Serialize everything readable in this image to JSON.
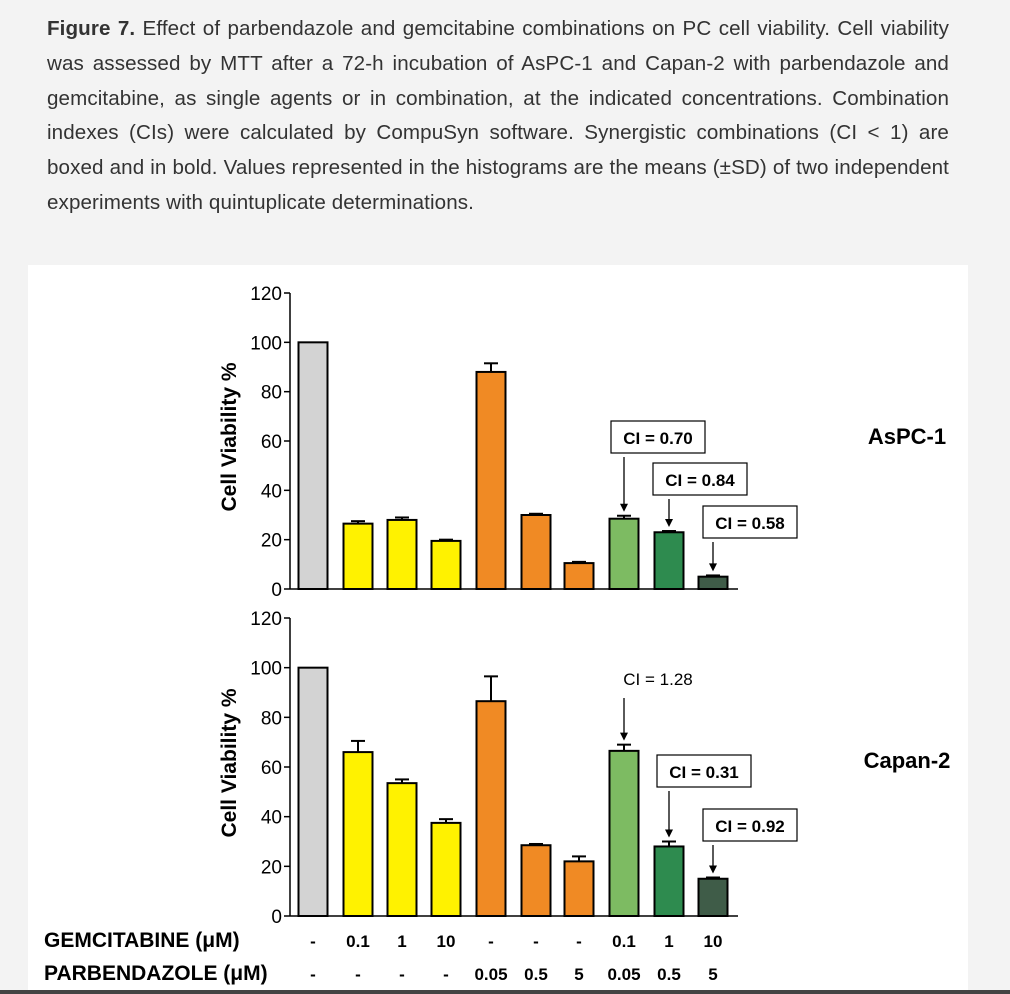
{
  "caption": {
    "figure_label": "Figure 7.",
    "text": " Effect of parbendazole and gemcitabine combinations on PC cell viability. Cell viability was assessed by MTT after a 72-h incubation of AsPC-1 and Capan-2 with parbendazole and gemcitabine, as single agents or in combination, at the indicated concentrations. Combination indexes (CIs) were calculated by CompuSyn software. Synergistic combinations (CI < 1) are boxed and in bold. Values represented in the histograms are the means (±SD) of two independent experiments with quintuplicate determinations."
  },
  "colors": {
    "control": "#d3d3d3",
    "gemcitabine": "#fff200",
    "parbendazole": "#f08a24",
    "combo_low": "#7dbb62",
    "combo_mid": "#2e8b4f",
    "combo_high": "#3f5c48"
  },
  "conditions": {
    "gemcitabine_label": "GEMCITABINE (μM)",
    "parbendazole_label": "PARBENDAZOLE (μM)",
    "gemcitabine": [
      "-",
      "0.1",
      "1",
      "10",
      "-",
      "-",
      "-",
      "0.1",
      "1",
      "10"
    ],
    "parbendazole": [
      "-",
      "-",
      "-",
      "-",
      "0.05",
      "0.5",
      "5",
      "0.05",
      "0.5",
      "5"
    ]
  },
  "chart_data": [
    {
      "type": "bar",
      "panel_label": "AsPC-1",
      "ylabel": "Cell Viability %",
      "ylim": [
        0,
        120
      ],
      "yticks": [
        0,
        20,
        40,
        60,
        80,
        100,
        120
      ],
      "bar_colors": [
        "control",
        "gemcitabine",
        "gemcitabine",
        "gemcitabine",
        "parbendazole",
        "parbendazole",
        "parbendazole",
        "combo_low",
        "combo_mid",
        "combo_high"
      ],
      "values": [
        100,
        26.5,
        28,
        19.5,
        88,
        30,
        10.5,
        28.5,
        23,
        5
      ],
      "errors": [
        0,
        1,
        1,
        0.5,
        3.5,
        0.5,
        0.5,
        1.2,
        0.5,
        0.5
      ],
      "annotations": [
        {
          "bar_index": 7,
          "text": "CI = 0.70",
          "boxed": true
        },
        {
          "bar_index": 8,
          "text": "CI = 0.84",
          "boxed": true
        },
        {
          "bar_index": 9,
          "text": "CI = 0.58",
          "boxed": true
        }
      ]
    },
    {
      "type": "bar",
      "panel_label": "Capan-2",
      "ylabel": "Cell Viability %",
      "ylim": [
        0,
        120
      ],
      "yticks": [
        0,
        20,
        40,
        60,
        80,
        100,
        120
      ],
      "bar_colors": [
        "control",
        "gemcitabine",
        "gemcitabine",
        "gemcitabine",
        "parbendazole",
        "parbendazole",
        "parbendazole",
        "combo_low",
        "combo_mid",
        "combo_high"
      ],
      "values": [
        100,
        66,
        53.5,
        37.5,
        86.5,
        28.5,
        22,
        66.5,
        28,
        15
      ],
      "errors": [
        0,
        4.5,
        1.5,
        1.5,
        10,
        0.5,
        2,
        2.5,
        2,
        0.5
      ],
      "annotations": [
        {
          "bar_index": 7,
          "text": "CI = 1.28",
          "boxed": false
        },
        {
          "bar_index": 8,
          "text": "CI = 0.31",
          "boxed": true
        },
        {
          "bar_index": 9,
          "text": "CI = 0.92",
          "boxed": true
        }
      ]
    }
  ]
}
